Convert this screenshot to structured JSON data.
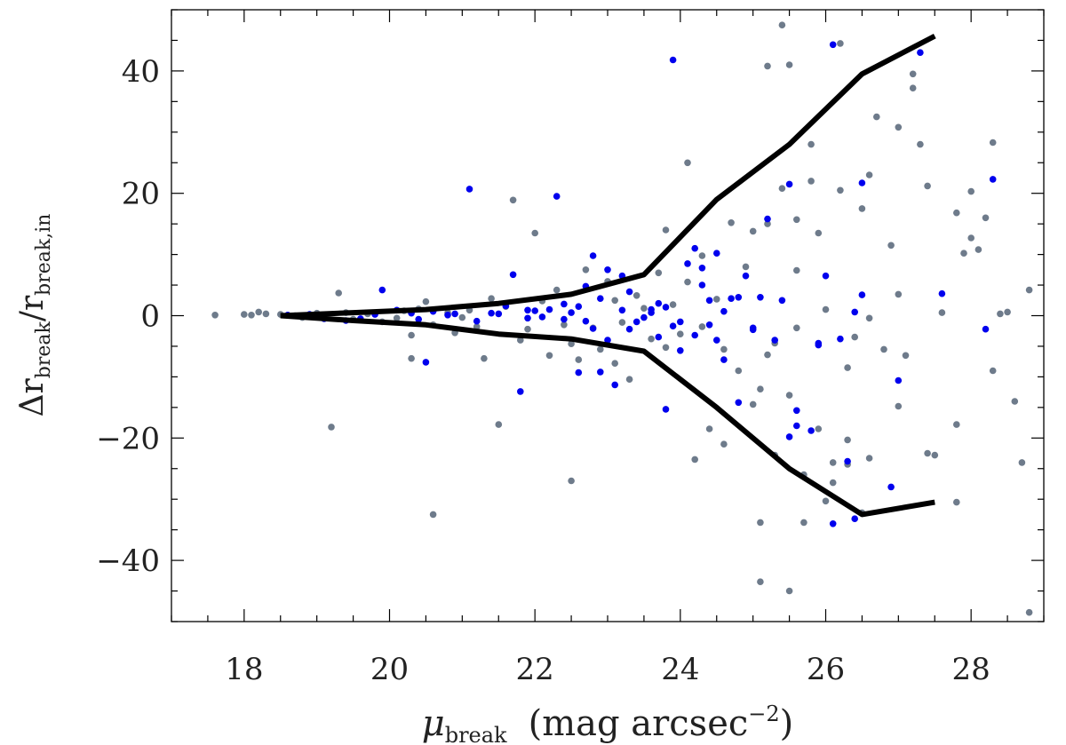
{
  "chart_data": {
    "type": "scatter",
    "xlim": [
      17,
      29
    ],
    "ylim": [
      -50,
      50
    ],
    "x_ticks": [
      18,
      20,
      22,
      24,
      26,
      28
    ],
    "x_minor_step": 0.5,
    "y_ticks": [
      -40,
      -20,
      0,
      20,
      40
    ],
    "y_minor_step": 5,
    "grid": false,
    "legend": "none",
    "xlabel": {
      "mu": "μ",
      "sub": "break",
      "text": "(mag arcsec",
      "sup": "−2",
      "close": ")"
    },
    "ylabel": {
      "delta": "Δr",
      "sub1": "break",
      "slash": "/",
      "r": "r",
      "sub2": "break,in"
    },
    "series": [
      {
        "color": "#6e7b8b",
        "points": [
          [
            17.6,
            0.1
          ],
          [
            18.0,
            0.2
          ],
          [
            18.1,
            0.1
          ],
          [
            18.2,
            0.6
          ],
          [
            18.3,
            0.3
          ],
          [
            18.5,
            0.2
          ],
          [
            18.7,
            0.0
          ],
          [
            18.8,
            -0.3
          ],
          [
            19.0,
            0.4
          ],
          [
            19.2,
            -18.2
          ],
          [
            19.3,
            3.7
          ],
          [
            19.4,
            0.5
          ],
          [
            19.5,
            -0.6
          ],
          [
            19.7,
            0.3
          ],
          [
            19.9,
            -1.0
          ],
          [
            20.1,
            -0.4
          ],
          [
            20.2,
            0.8
          ],
          [
            20.3,
            -7.0
          ],
          [
            20.3,
            -3.2
          ],
          [
            20.4,
            1.1
          ],
          [
            20.5,
            2.3
          ],
          [
            20.6,
            -32.5
          ],
          [
            20.6,
            -1.5
          ],
          [
            20.8,
            0.5
          ],
          [
            20.9,
            -2.8
          ],
          [
            21.0,
            -0.3
          ],
          [
            21.1,
            0.9
          ],
          [
            21.2,
            -1.8
          ],
          [
            21.3,
            -7.0
          ],
          [
            21.4,
            2.8
          ],
          [
            21.5,
            -17.8
          ],
          [
            21.6,
            1.5
          ],
          [
            21.7,
            18.9
          ],
          [
            21.8,
            -4.0
          ],
          [
            21.9,
            -2.2
          ],
          [
            22.0,
            13.5
          ],
          [
            22.1,
            2.4
          ],
          [
            22.2,
            -6.5
          ],
          [
            22.3,
            4.2
          ],
          [
            22.4,
            -1.5
          ],
          [
            22.5,
            -27.0
          ],
          [
            22.5,
            -4.6
          ],
          [
            22.6,
            -7.2
          ],
          [
            22.7,
            7.5
          ],
          [
            22.8,
            -2.0
          ],
          [
            22.9,
            -5.5
          ],
          [
            23.0,
            5.6
          ],
          [
            23.1,
            -7.8
          ],
          [
            23.1,
            2.5
          ],
          [
            23.2,
            -1.1
          ],
          [
            23.3,
            -10.4
          ],
          [
            23.4,
            3.3
          ],
          [
            23.5,
            1.2
          ],
          [
            23.6,
            -3.8
          ],
          [
            23.7,
            7.0
          ],
          [
            23.8,
            -5.2
          ],
          [
            23.8,
            14.0
          ],
          [
            23.9,
            1.8
          ],
          [
            24.0,
            -3.0
          ],
          [
            24.1,
            25.0
          ],
          [
            24.1,
            5.5
          ],
          [
            24.2,
            -23.5
          ],
          [
            24.3,
            -1.8
          ],
          [
            24.3,
            9.8
          ],
          [
            24.4,
            -18.5
          ],
          [
            24.5,
            2.7
          ],
          [
            24.6,
            -5.5
          ],
          [
            24.7,
            15.2
          ],
          [
            24.8,
            -9.0
          ],
          [
            24.9,
            8.0
          ],
          [
            25.0,
            -14.5
          ],
          [
            25.0,
            13.8
          ],
          [
            25.1,
            -33.8
          ],
          [
            25.1,
            -43.5
          ],
          [
            25.1,
            -12.0
          ],
          [
            25.2,
            40.8
          ],
          [
            25.2,
            15.0
          ],
          [
            25.3,
            -4.5
          ],
          [
            25.3,
            -22.8
          ],
          [
            25.4,
            47.5
          ],
          [
            25.4,
            20.8
          ],
          [
            25.5,
            -45.0
          ],
          [
            25.5,
            41.0
          ],
          [
            25.5,
            -13.0
          ],
          [
            25.6,
            -2.0
          ],
          [
            25.6,
            7.4
          ],
          [
            25.7,
            -26.0
          ],
          [
            25.8,
            28.0
          ],
          [
            25.8,
            22.0
          ],
          [
            25.9,
            -18.5
          ],
          [
            25.9,
            13.5
          ],
          [
            26.0,
            -30.3
          ],
          [
            26.0,
            1.0
          ],
          [
            26.1,
            -24.0
          ],
          [
            26.2,
            20.5
          ],
          [
            26.2,
            44.5
          ],
          [
            26.3,
            -20.3
          ],
          [
            26.3,
            -8.5
          ],
          [
            26.4,
            -3.5
          ],
          [
            26.5,
            17.5
          ],
          [
            26.5,
            -32.2
          ],
          [
            26.6,
            -23.3
          ],
          [
            26.6,
            23.0
          ],
          [
            26.7,
            32.5
          ],
          [
            26.8,
            -5.5
          ],
          [
            26.9,
            11.5
          ],
          [
            27.0,
            -14.8
          ],
          [
            27.0,
            30.8
          ],
          [
            27.1,
            -6.5
          ],
          [
            27.2,
            39.5
          ],
          [
            27.2,
            37.2
          ],
          [
            27.3,
            28.0
          ],
          [
            27.4,
            -22.5
          ],
          [
            27.4,
            21.2
          ],
          [
            27.5,
            -22.8
          ],
          [
            27.6,
            0.5
          ],
          [
            27.8,
            16.8
          ],
          [
            27.8,
            -17.8
          ],
          [
            27.8,
            -30.5
          ],
          [
            27.9,
            10.2
          ],
          [
            28.0,
            20.3
          ],
          [
            28.0,
            12.7
          ],
          [
            28.1,
            10.8
          ],
          [
            28.2,
            16.0
          ],
          [
            28.3,
            -9.0
          ],
          [
            28.3,
            28.3
          ],
          [
            28.4,
            0.3
          ],
          [
            28.5,
            0.6
          ],
          [
            28.6,
            -14.0
          ],
          [
            28.7,
            -24.0
          ],
          [
            28.8,
            4.2
          ],
          [
            28.8,
            -48.5
          ],
          [
            26.1,
            -27.3
          ],
          [
            25.7,
            -33.8
          ],
          [
            26.3,
            -24.3
          ],
          [
            25.6,
            15.7
          ],
          [
            26.6,
            -0.4
          ],
          [
            27.0,
            3.5
          ],
          [
            25.2,
            -6.4
          ],
          [
            24.6,
            -21.0
          ]
        ]
      },
      {
        "color": "#0000ee",
        "points": [
          [
            18.6,
            0.1
          ],
          [
            18.9,
            0.2
          ],
          [
            19.1,
            -0.5
          ],
          [
            19.4,
            -0.8
          ],
          [
            19.6,
            -0.5
          ],
          [
            19.9,
            4.2
          ],
          [
            20.1,
            0.9
          ],
          [
            20.4,
            -0.6
          ],
          [
            20.5,
            -7.6
          ],
          [
            20.6,
            0.7
          ],
          [
            20.9,
            0.3
          ],
          [
            21.1,
            20.7
          ],
          [
            21.2,
            -0.9
          ],
          [
            21.4,
            0.4
          ],
          [
            21.6,
            1.6
          ],
          [
            21.7,
            6.7
          ],
          [
            21.8,
            -12.4
          ],
          [
            21.9,
            -0.4
          ],
          [
            22.0,
            0.8
          ],
          [
            22.2,
            1.0
          ],
          [
            22.3,
            19.5
          ],
          [
            22.4,
            -0.6
          ],
          [
            22.5,
            0.5
          ],
          [
            22.6,
            -9.3
          ],
          [
            22.7,
            4.8
          ],
          [
            22.8,
            9.8
          ],
          [
            22.9,
            -9.2
          ],
          [
            23.0,
            -4.0
          ],
          [
            23.1,
            -11.3
          ],
          [
            23.2,
            6.5
          ],
          [
            23.3,
            -2.2
          ],
          [
            23.5,
            -0.3
          ],
          [
            23.6,
            0.5
          ],
          [
            23.7,
            2.0
          ],
          [
            23.8,
            -15.3
          ],
          [
            23.9,
            41.8
          ],
          [
            24.0,
            -5.7
          ],
          [
            24.1,
            8.5
          ],
          [
            24.2,
            11.0
          ],
          [
            24.3,
            5.0
          ],
          [
            24.4,
            -1.5
          ],
          [
            24.5,
            10.2
          ],
          [
            24.6,
            -7.2
          ],
          [
            24.7,
            2.8
          ],
          [
            24.8,
            -14.2
          ],
          [
            24.9,
            6.5
          ],
          [
            25.0,
            -2.0
          ],
          [
            25.1,
            3.0
          ],
          [
            25.2,
            15.8
          ],
          [
            25.3,
            -4.0
          ],
          [
            25.4,
            2.5
          ],
          [
            25.5,
            21.5
          ],
          [
            25.5,
            -19.8
          ],
          [
            25.6,
            -15.5
          ],
          [
            25.8,
            -18.8
          ],
          [
            25.9,
            -4.5
          ],
          [
            26.0,
            6.5
          ],
          [
            26.1,
            -34.0
          ],
          [
            26.1,
            44.3
          ],
          [
            26.2,
            -3.8
          ],
          [
            26.3,
            -23.8
          ],
          [
            26.4,
            0.6
          ],
          [
            26.5,
            21.7
          ],
          [
            26.5,
            3.4
          ],
          [
            27.0,
            -10.6
          ],
          [
            26.9,
            -28.0
          ],
          [
            27.3,
            43.0
          ],
          [
            27.6,
            3.6
          ],
          [
            28.2,
            -2.2
          ],
          [
            28.3,
            22.3
          ],
          [
            26.4,
            -33.2
          ],
          [
            25.6,
            -18.0
          ],
          [
            25.9,
            -4.8
          ],
          [
            24.3,
            7.8
          ],
          [
            23.0,
            7.5
          ],
          [
            22.8,
            -2.1
          ],
          [
            22.9,
            2.8
          ],
          [
            23.4,
            -1.0
          ],
          [
            23.7,
            -3.5
          ],
          [
            24.2,
            -3.2
          ],
          [
            24.8,
            3.0
          ],
          [
            24.5,
            -4.0
          ],
          [
            23.9,
            -1.7
          ],
          [
            23.6,
            1.0
          ],
          [
            22.6,
            1.5
          ],
          [
            21.9,
            0.9
          ],
          [
            21.5,
            0.3
          ],
          [
            20.8,
            0.1
          ],
          [
            20.3,
            0.4
          ],
          [
            19.8,
            0.2
          ],
          [
            22.1,
            -0.2
          ],
          [
            22.7,
            -0.9
          ],
          [
            23.2,
            0.9
          ],
          [
            23.8,
            1.4
          ],
          [
            24.0,
            -1.0
          ],
          [
            24.6,
            0.7
          ],
          [
            25.0,
            -2.3
          ],
          [
            24.4,
            2.5
          ],
          [
            23.3,
            3.9
          ],
          [
            22.4,
            1.9
          ]
        ]
      }
    ],
    "envelope_lines": [
      {
        "color": "#000000",
        "points": [
          [
            18.5,
            0.0
          ],
          [
            19.5,
            0.5
          ],
          [
            20.5,
            1.0
          ],
          [
            21.5,
            2.0
          ],
          [
            22.5,
            3.5
          ],
          [
            23.5,
            6.7
          ],
          [
            24.5,
            19.0
          ],
          [
            25.5,
            28.0
          ],
          [
            26.5,
            39.5
          ],
          [
            27.5,
            45.7
          ]
        ]
      },
      {
        "color": "#000000",
        "points": [
          [
            18.5,
            0.0
          ],
          [
            19.5,
            -0.8
          ],
          [
            20.5,
            -1.5
          ],
          [
            21.5,
            -3.0
          ],
          [
            22.5,
            -3.8
          ],
          [
            23.5,
            -5.8
          ],
          [
            24.5,
            -15.0
          ],
          [
            25.5,
            -25.0
          ],
          [
            26.5,
            -32.5
          ],
          [
            27.5,
            -30.5
          ]
        ]
      }
    ]
  }
}
